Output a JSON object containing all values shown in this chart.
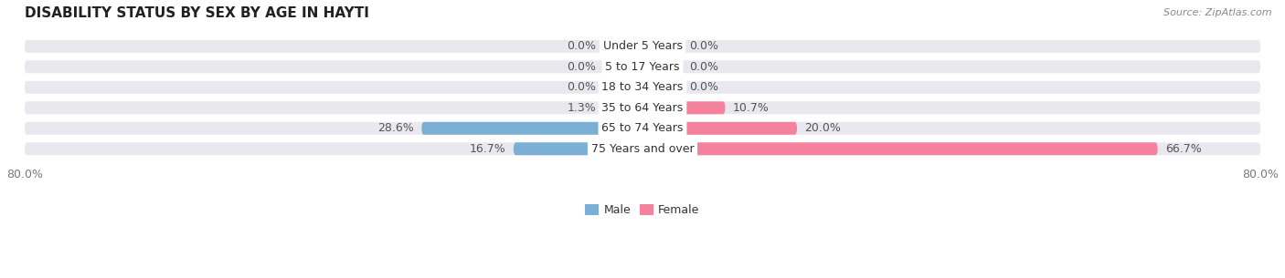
{
  "title": "DISABILITY STATUS BY SEX BY AGE IN HAYTI",
  "source": "Source: ZipAtlas.com",
  "categories": [
    "Under 5 Years",
    "5 to 17 Years",
    "18 to 34 Years",
    "35 to 64 Years",
    "65 to 74 Years",
    "75 Years and over"
  ],
  "male_values": [
    0.0,
    0.0,
    0.0,
    1.3,
    28.6,
    16.7
  ],
  "female_values": [
    0.0,
    0.0,
    0.0,
    10.7,
    20.0,
    66.7
  ],
  "male_color": "#7BAFD4",
  "female_color": "#F4829C",
  "bar_bg_color": "#E8E8EE",
  "max_val": 80.0,
  "min_bar_visual": 5.0,
  "bar_height": 0.62,
  "title_fontsize": 11,
  "label_fontsize": 9,
  "tick_fontsize": 9,
  "legend_fontsize": 9,
  "value_color": "#555555",
  "cat_label_color": "#333333"
}
